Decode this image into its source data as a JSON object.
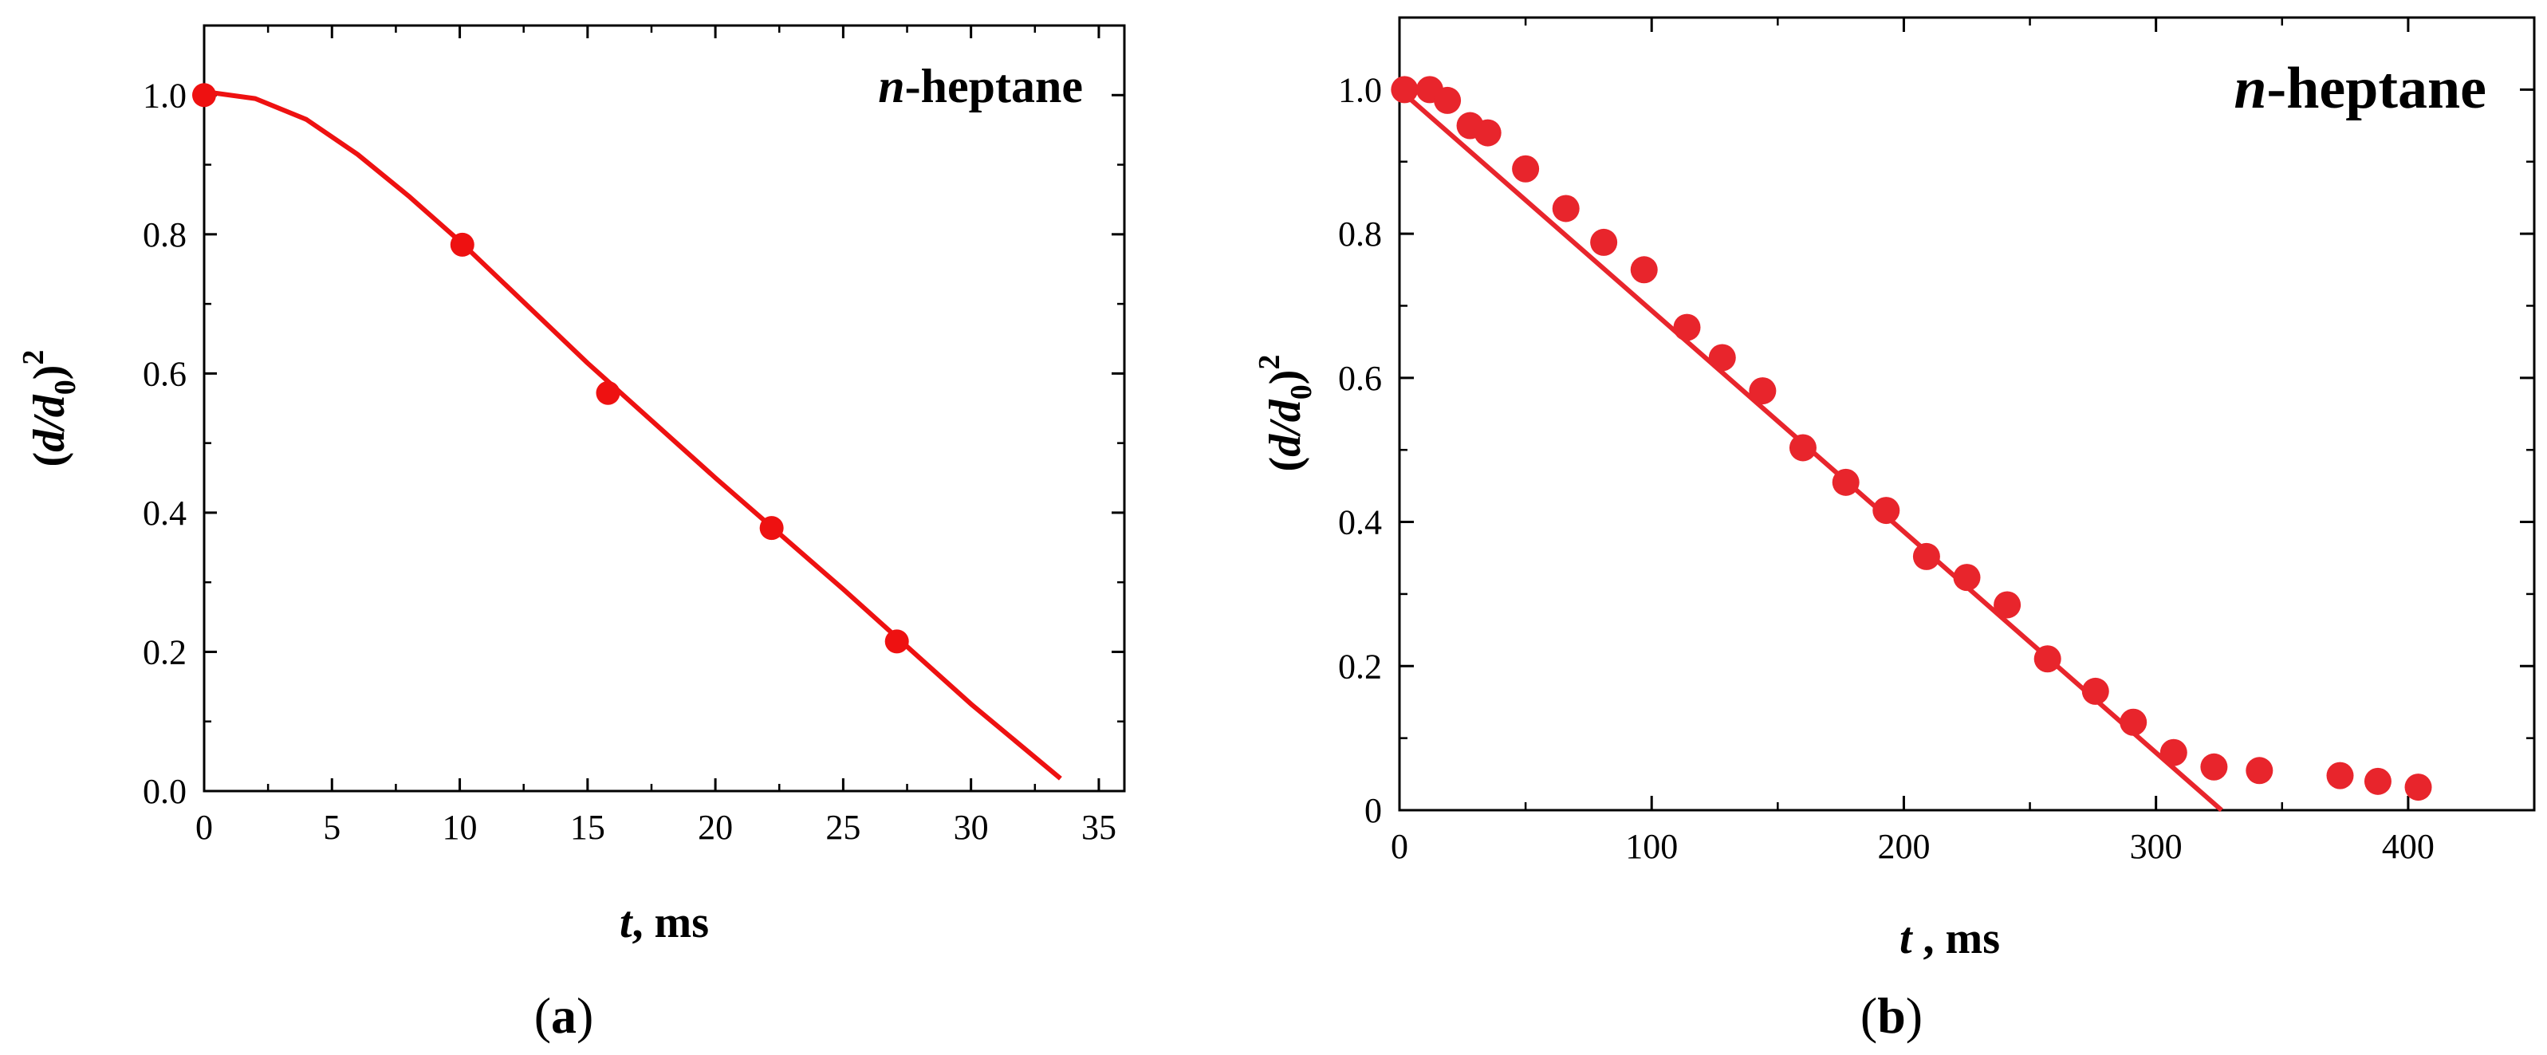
{
  "chart_data": [
    {
      "type": "scatter",
      "panel_label": "(a)",
      "annotation": {
        "italic": "n",
        "rest": "-heptane"
      },
      "xlabel": {
        "var": "t",
        "unit": ", ms"
      },
      "ylabel": {
        "open": "(",
        "var1": "d",
        "slash": "/",
        "var2": "d",
        "sub": "0",
        "close": ")",
        "sup": "2"
      },
      "xlim": [
        0,
        36
      ],
      "ylim": [
        0,
        1.1
      ],
      "xticks": [
        "0",
        "5",
        "10",
        "15",
        "20",
        "25",
        "30",
        "35"
      ],
      "xtick_values": [
        0,
        5,
        10,
        15,
        20,
        25,
        30,
        35
      ],
      "yticks": [
        "0.0",
        "0.2",
        "0.4",
        "0.6",
        "0.8",
        "1.0"
      ],
      "ytick_values": [
        0,
        0.2,
        0.4,
        0.6,
        0.8,
        1.0
      ],
      "points": [
        {
          "x": 0,
          "y": 1.0
        },
        {
          "x": 10.1,
          "y": 0.785
        },
        {
          "x": 15.8,
          "y": 0.572
        },
        {
          "x": 22.2,
          "y": 0.378
        },
        {
          "x": 27.1,
          "y": 0.215
        }
      ],
      "line": [
        {
          "x": 0,
          "y": 1.005
        },
        {
          "x": 2,
          "y": 0.995
        },
        {
          "x": 4,
          "y": 0.965
        },
        {
          "x": 6,
          "y": 0.915
        },
        {
          "x": 8,
          "y": 0.855
        },
        {
          "x": 10,
          "y": 0.79
        },
        {
          "x": 12,
          "y": 0.72
        },
        {
          "x": 15,
          "y": 0.615
        },
        {
          "x": 20,
          "y": 0.45
        },
        {
          "x": 25,
          "y": 0.29
        },
        {
          "x": 30,
          "y": 0.125
        },
        {
          "x": 33.5,
          "y": 0.018
        }
      ],
      "color": "#ee1111"
    },
    {
      "type": "scatter",
      "panel_label": "(b)",
      "annotation": {
        "italic": "n",
        "rest": "-heptane"
      },
      "xlabel": {
        "var": "t",
        "unit": " , ms"
      },
      "ylabel": {
        "open": "(",
        "var1": "d",
        "slash": "/",
        "var2": "d",
        "sub": "0",
        "close": ")",
        "sup": "2"
      },
      "xlim": [
        0,
        450
      ],
      "ylim": [
        0,
        1.1
      ],
      "xticks": [
        "0",
        "100",
        "200",
        "300",
        "400"
      ],
      "xtick_values": [
        0,
        100,
        200,
        300,
        400
      ],
      "yticks": [
        "0",
        "0.2",
        "0.4",
        "0.6",
        "0.8",
        "1.0"
      ],
      "ytick_values": [
        0,
        0.2,
        0.4,
        0.6,
        0.8,
        1.0
      ],
      "points": [
        {
          "x": 2,
          "y": 1.0
        },
        {
          "x": 12,
          "y": 1.0
        },
        {
          "x": 19,
          "y": 0.985
        },
        {
          "x": 28,
          "y": 0.95
        },
        {
          "x": 35,
          "y": 0.94
        },
        {
          "x": 50,
          "y": 0.89
        },
        {
          "x": 66,
          "y": 0.835
        },
        {
          "x": 81,
          "y": 0.788
        },
        {
          "x": 97,
          "y": 0.75
        },
        {
          "x": 114,
          "y": 0.67
        },
        {
          "x": 128,
          "y": 0.628
        },
        {
          "x": 144,
          "y": 0.582
        },
        {
          "x": 160,
          "y": 0.503
        },
        {
          "x": 177,
          "y": 0.455
        },
        {
          "x": 193,
          "y": 0.416
        },
        {
          "x": 209,
          "y": 0.352
        },
        {
          "x": 225,
          "y": 0.323
        },
        {
          "x": 241,
          "y": 0.285
        },
        {
          "x": 257,
          "y": 0.21
        },
        {
          "x": 276,
          "y": 0.165
        },
        {
          "x": 291,
          "y": 0.122
        },
        {
          "x": 307,
          "y": 0.08
        },
        {
          "x": 323,
          "y": 0.06
        },
        {
          "x": 341,
          "y": 0.055
        },
        {
          "x": 373,
          "y": 0.048
        },
        {
          "x": 388,
          "y": 0.04
        },
        {
          "x": 404,
          "y": 0.032
        }
      ],
      "line": [
        {
          "x": 0,
          "y": 1.0
        },
        {
          "x": 326,
          "y": 0.0
        }
      ],
      "color": "#e8252c"
    }
  ]
}
